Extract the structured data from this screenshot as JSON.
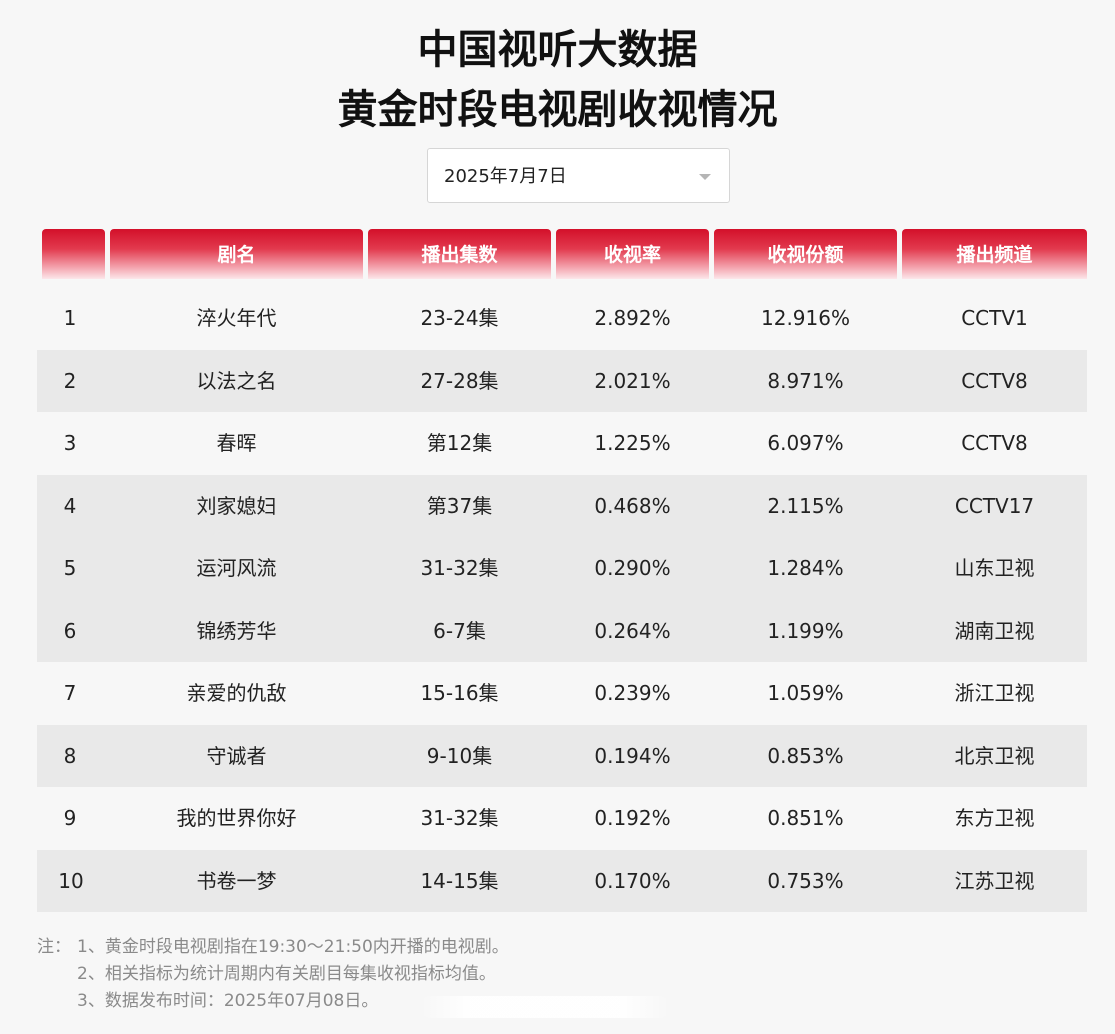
{
  "title_line1": "中国视听大数据",
  "title_line2": "黄金时段电视剧收视情况",
  "date_select": {
    "value": "2025年7月7日"
  },
  "table": {
    "headers": [
      "",
      "剧名",
      "播出集数",
      "收视率",
      "收视份额",
      "播出频道"
    ],
    "rows": [
      {
        "rank": "1",
        "name": "淬火年代",
        "episodes": "23-24集",
        "rating": "2.892%",
        "share": "12.916%",
        "channel": "CCTV1"
      },
      {
        "rank": "2",
        "name": "以法之名",
        "episodes": "27-28集",
        "rating": "2.021%",
        "share": "8.971%",
        "channel": "CCTV8"
      },
      {
        "rank": "3",
        "name": "春晖",
        "episodes": "第12集",
        "rating": "1.225%",
        "share": "6.097%",
        "channel": "CCTV8"
      },
      {
        "rank": "4",
        "name": "刘家媳妇",
        "episodes": "第37集",
        "rating": "0.468%",
        "share": "2.115%",
        "channel": "CCTV17"
      },
      {
        "rank": "5",
        "name": "运河风流",
        "episodes": "31-32集",
        "rating": "0.290%",
        "share": "1.284%",
        "channel": "山东卫视"
      },
      {
        "rank": "6",
        "name": "锦绣芳华",
        "episodes": "6-7集",
        "rating": "0.264%",
        "share": "1.199%",
        "channel": "湖南卫视"
      },
      {
        "rank": "7",
        "name": "亲爱的仇敌",
        "episodes": "15-16集",
        "rating": "0.239%",
        "share": "1.059%",
        "channel": "浙江卫视"
      },
      {
        "rank": "8",
        "name": "守诚者",
        "episodes": "9-10集",
        "rating": "0.194%",
        "share": "0.853%",
        "channel": "北京卫视"
      },
      {
        "rank": "9",
        "name": "我的世界你好",
        "episodes": "31-32集",
        "rating": "0.192%",
        "share": "0.851%",
        "channel": "东方卫视"
      },
      {
        "rank": "10",
        "name": "书卷一梦",
        "episodes": "14-15集",
        "rating": "0.170%",
        "share": "0.753%",
        "channel": "江苏卫视"
      }
    ]
  },
  "notes": {
    "prefix": "注：",
    "lines": [
      "1、黄金时段电视剧指在19:30～21:50内开播的电视剧。",
      "2、相关指标为统计周期内有关剧目每集收视指标均值。",
      "3、数据发布时间：2025年07月08日。"
    ]
  }
}
